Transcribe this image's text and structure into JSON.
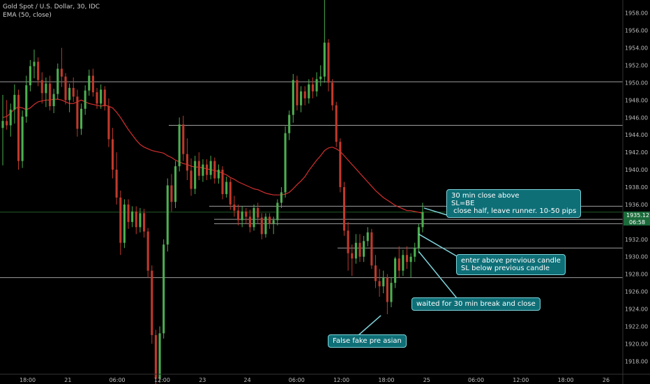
{
  "legend": {
    "symbol_line": "Gold Spot / U.S. Dollar, 30, IDC",
    "indicator_line": "EMA (50, close)"
  },
  "price_axis": {
    "current_price": "1935.12",
    "countdown": "06:58"
  },
  "colors": {
    "up": "#4caf50",
    "down": "#c0392b",
    "ema": "#d32f2f",
    "callout_bg": "#0e6f77",
    "callout_border": "#7fd4dc",
    "level_line": "#9e9e9e",
    "current_price_bg": "#1b6b3b"
  },
  "annotations": [
    {
      "id": "close-above",
      "lines": [
        "30 min close above",
        "SL=BE",
        " close half, leave runner. 10-50 pips"
      ]
    },
    {
      "id": "enter-above",
      "lines": [
        "enter above previous candle",
        "SL below previous candle"
      ]
    },
    {
      "id": "waited",
      "lines": [
        "waited for 30 min break and close"
      ]
    },
    {
      "id": "false-fake",
      "lines": [
        "False fake pre asian"
      ]
    }
  ],
  "chart_data": {
    "type": "candlestick",
    "title": "Gold Spot / U.S. Dollar, 30, IDC",
    "indicator": "EMA (50, close)",
    "ylim": [
      1916.5,
      1959.5
    ],
    "y_ticks": [
      "1918.00",
      "1920.00",
      "1922.00",
      "1924.00",
      "1926.00",
      "1928.00",
      "1930.00",
      "1932.00",
      "1934.00",
      "1936.00",
      "1938.00",
      "1940.00",
      "1942.00",
      "1944.00",
      "1946.00",
      "1948.00",
      "1950.00",
      "1952.00",
      "1954.00",
      "1956.00",
      "1958.00"
    ],
    "x_ticks": [
      "18:00",
      "21",
      "06:00",
      "12:00",
      "23",
      "24",
      "06:00",
      "12:00",
      "18:00",
      "25",
      "06:00",
      "12:00",
      "18:00",
      "26"
    ],
    "horizontal_levels": [
      1950.1,
      1945.1,
      1935.8,
      1934.3,
      1933.8,
      1931.0,
      1927.6
    ],
    "current_price": 1935.12,
    "candles": [
      [
        1944.8,
        1948.6,
        1940.5,
        1945.6
      ],
      [
        1945.6,
        1948.0,
        1944.6,
        1945.1
      ],
      [
        1945.1,
        1947.6,
        1943.8,
        1946.9
      ],
      [
        1946.9,
        1949.8,
        1945.3,
        1948.6
      ],
      [
        1948.6,
        1949.2,
        1940.0,
        1941.0
      ],
      [
        1941.0,
        1946.8,
        1940.2,
        1946.1
      ],
      [
        1946.1,
        1950.8,
        1945.4,
        1949.7
      ],
      [
        1949.7,
        1952.6,
        1949.0,
        1951.9
      ],
      [
        1951.9,
        1953.8,
        1950.5,
        1952.4
      ],
      [
        1952.4,
        1952.9,
        1949.6,
        1950.3
      ],
      [
        1950.3,
        1951.2,
        1947.6,
        1948.8
      ],
      [
        1948.8,
        1950.6,
        1947.2,
        1949.9
      ],
      [
        1949.9,
        1950.8,
        1946.8,
        1947.3
      ],
      [
        1947.3,
        1949.3,
        1946.5,
        1948.7
      ],
      [
        1948.7,
        1952.2,
        1948.1,
        1951.6
      ],
      [
        1951.6,
        1954.0,
        1949.5,
        1950.7
      ],
      [
        1950.7,
        1951.1,
        1947.5,
        1948.0
      ],
      [
        1948.0,
        1949.9,
        1946.6,
        1949.4
      ],
      [
        1949.4,
        1950.6,
        1947.8,
        1948.4
      ],
      [
        1948.4,
        1949.2,
        1943.8,
        1944.7
      ],
      [
        1944.7,
        1947.6,
        1944.0,
        1947.0
      ],
      [
        1947.0,
        1949.7,
        1946.3,
        1949.1
      ],
      [
        1949.1,
        1951.5,
        1948.5,
        1950.8
      ],
      [
        1950.8,
        1951.6,
        1948.4,
        1948.9
      ],
      [
        1948.9,
        1949.4,
        1947.0,
        1947.6
      ],
      [
        1947.6,
        1949.8,
        1947.0,
        1949.2
      ],
      [
        1949.2,
        1949.6,
        1946.8,
        1947.3
      ],
      [
        1947.3,
        1948.2,
        1942.6,
        1943.5
      ],
      [
        1943.5,
        1944.8,
        1939.0,
        1940.0
      ],
      [
        1940.0,
        1942.0,
        1936.0,
        1936.8
      ],
      [
        1936.8,
        1937.6,
        1930.2,
        1931.6
      ],
      [
        1931.6,
        1936.6,
        1931.0,
        1936.0
      ],
      [
        1936.0,
        1936.6,
        1933.2,
        1934.0
      ],
      [
        1934.0,
        1935.8,
        1933.4,
        1935.2
      ],
      [
        1935.2,
        1935.8,
        1932.6,
        1933.4
      ],
      [
        1933.4,
        1935.6,
        1932.8,
        1935.0
      ],
      [
        1935.0,
        1935.5,
        1932.2,
        1932.9
      ],
      [
        1932.9,
        1933.3,
        1927.6,
        1928.4
      ],
      [
        1928.4,
        1929.0,
        1920.0,
        1921.0
      ],
      [
        1921.0,
        1921.6,
        1915.0,
        1916.0
      ],
      [
        1916.0,
        1922.0,
        1915.5,
        1921.2
      ],
      [
        1921.2,
        1932.0,
        1920.6,
        1931.4
      ],
      [
        1931.4,
        1939.0,
        1930.6,
        1938.2
      ],
      [
        1938.2,
        1939.5,
        1935.2,
        1936.3
      ],
      [
        1936.3,
        1941.0,
        1935.6,
        1940.4
      ],
      [
        1940.4,
        1946.0,
        1939.8,
        1945.2
      ],
      [
        1945.2,
        1946.2,
        1941.0,
        1941.8
      ],
      [
        1941.8,
        1943.6,
        1938.8,
        1939.9
      ],
      [
        1939.9,
        1941.3,
        1937.0,
        1937.8
      ],
      [
        1937.8,
        1941.6,
        1937.2,
        1941.0
      ],
      [
        1941.0,
        1942.0,
        1938.8,
        1939.3
      ],
      [
        1939.3,
        1941.2,
        1938.6,
        1940.6
      ],
      [
        1940.6,
        1941.2,
        1938.8,
        1939.4
      ],
      [
        1939.4,
        1941.6,
        1938.9,
        1941.0
      ],
      [
        1941.0,
        1941.4,
        1938.4,
        1939.0
      ],
      [
        1939.0,
        1940.6,
        1938.4,
        1940.0
      ],
      [
        1940.0,
        1940.4,
        1936.6,
        1937.2
      ],
      [
        1937.2,
        1939.2,
        1936.8,
        1938.6
      ],
      [
        1938.6,
        1939.0,
        1935.4,
        1936.0
      ],
      [
        1936.0,
        1937.0,
        1934.6,
        1935.3
      ],
      [
        1935.3,
        1936.0,
        1933.6,
        1934.2
      ],
      [
        1934.2,
        1935.8,
        1933.4,
        1935.2
      ],
      [
        1935.2,
        1935.6,
        1933.8,
        1934.6
      ],
      [
        1934.6,
        1935.4,
        1932.8,
        1933.4
      ],
      [
        1933.4,
        1936.0,
        1933.0,
        1935.6
      ],
      [
        1935.6,
        1936.2,
        1933.8,
        1934.5
      ],
      [
        1934.5,
        1935.0,
        1932.0,
        1932.6
      ],
      [
        1932.6,
        1935.0,
        1932.2,
        1934.6
      ],
      [
        1934.6,
        1935.0,
        1933.2,
        1933.8
      ],
      [
        1933.8,
        1934.6,
        1932.6,
        1934.2
      ],
      [
        1934.2,
        1936.6,
        1933.6,
        1936.2
      ],
      [
        1936.2,
        1938.0,
        1935.6,
        1937.4
      ],
      [
        1937.4,
        1945.0,
        1936.8,
        1944.2
      ],
      [
        1944.2,
        1946.8,
        1943.4,
        1946.3
      ],
      [
        1946.3,
        1951.0,
        1945.4,
        1950.3
      ],
      [
        1950.3,
        1950.8,
        1946.8,
        1947.4
      ],
      [
        1947.4,
        1949.6,
        1946.6,
        1949.0
      ],
      [
        1949.0,
        1949.6,
        1947.4,
        1948.2
      ],
      [
        1948.2,
        1950.4,
        1947.6,
        1949.8
      ],
      [
        1949.8,
        1950.6,
        1948.2,
        1949.0
      ],
      [
        1949.0,
        1951.2,
        1948.4,
        1950.4
      ],
      [
        1950.4,
        1952.0,
        1949.6,
        1950.7
      ],
      [
        1950.7,
        1959.5,
        1950.0,
        1954.6
      ],
      [
        1954.6,
        1955.0,
        1949.0,
        1950.0
      ],
      [
        1950.0,
        1950.4,
        1946.8,
        1947.4
      ],
      [
        1947.4,
        1947.8,
        1942.6,
        1943.2
      ],
      [
        1943.2,
        1943.6,
        1937.4,
        1938.0
      ],
      [
        1938.0,
        1938.6,
        1932.4,
        1933.0
      ],
      [
        1933.0,
        1934.0,
        1928.4,
        1930.4
      ],
      [
        1930.4,
        1931.4,
        1927.8,
        1929.8
      ],
      [
        1929.8,
        1932.6,
        1929.2,
        1931.6
      ],
      [
        1931.6,
        1932.6,
        1929.4,
        1930.0
      ],
      [
        1930.0,
        1932.4,
        1929.4,
        1931.8
      ],
      [
        1931.8,
        1933.4,
        1931.2,
        1932.8
      ],
      [
        1932.8,
        1933.2,
        1928.6,
        1929.0
      ],
      [
        1929.0,
        1930.2,
        1926.4,
        1927.2
      ],
      [
        1927.2,
        1928.6,
        1925.4,
        1926.6
      ],
      [
        1926.6,
        1928.4,
        1925.8,
        1927.6
      ],
      [
        1927.6,
        1928.0,
        1923.4,
        1924.8
      ],
      [
        1924.8,
        1927.6,
        1924.2,
        1927.0
      ],
      [
        1927.0,
        1930.0,
        1926.4,
        1929.8
      ],
      [
        1929.8,
        1931.2,
        1927.6,
        1928.4
      ],
      [
        1928.4,
        1930.8,
        1927.8,
        1930.2
      ],
      [
        1930.2,
        1931.2,
        1928.6,
        1929.4
      ],
      [
        1929.4,
        1930.4,
        1927.6,
        1930.0
      ],
      [
        1930.0,
        1931.6,
        1929.4,
        1931.0
      ],
      [
        1931.0,
        1933.8,
        1930.4,
        1933.4
      ],
      [
        1933.4,
        1936.2,
        1932.8,
        1935.12
      ]
    ],
    "ema": [
      1946.0,
      1946.1,
      1946.5,
      1947.0,
      1947.2,
      1947.1,
      1946.9,
      1947.1,
      1947.5,
      1947.8,
      1947.9,
      1948.0,
      1948.0,
      1948.1,
      1948.1,
      1948.0,
      1947.8,
      1947.6,
      1947.6,
      1947.8,
      1948.0,
      1947.8,
      1947.6,
      1947.5,
      1947.4,
      1947.3,
      1947.4,
      1947.3,
      1947.1,
      1946.6,
      1946.0,
      1945.3,
      1944.6,
      1944.0,
      1943.4,
      1942.9,
      1942.6,
      1942.4,
      1942.2,
      1942.1,
      1942.0,
      1941.9,
      1941.6,
      1941.4,
      1941.1,
      1940.9,
      1940.7,
      1940.6,
      1940.4,
      1940.3,
      1940.3,
      1940.2,
      1940.1,
      1940.0,
      1939.9,
      1939.8,
      1939.6,
      1939.4,
      1939.1,
      1938.9,
      1938.6,
      1938.4,
      1938.2,
      1938.0,
      1937.8,
      1937.7,
      1937.5,
      1937.3,
      1937.2,
      1937.1,
      1937.1,
      1937.1,
      1937.2,
      1937.4,
      1937.8,
      1938.3,
      1938.7,
      1939.2,
      1939.9,
      1940.5,
      1941.1,
      1941.6,
      1942.2,
      1942.5,
      1942.6,
      1942.4,
      1942.1,
      1941.6,
      1941.1,
      1940.6,
      1940.1,
      1939.6,
      1939.1,
      1938.6,
      1938.1,
      1937.6,
      1937.2,
      1936.8,
      1936.5,
      1936.2,
      1935.9,
      1935.7,
      1935.5,
      1935.3,
      1935.3,
      1935.2,
      1935.1,
      1935.0
    ]
  }
}
